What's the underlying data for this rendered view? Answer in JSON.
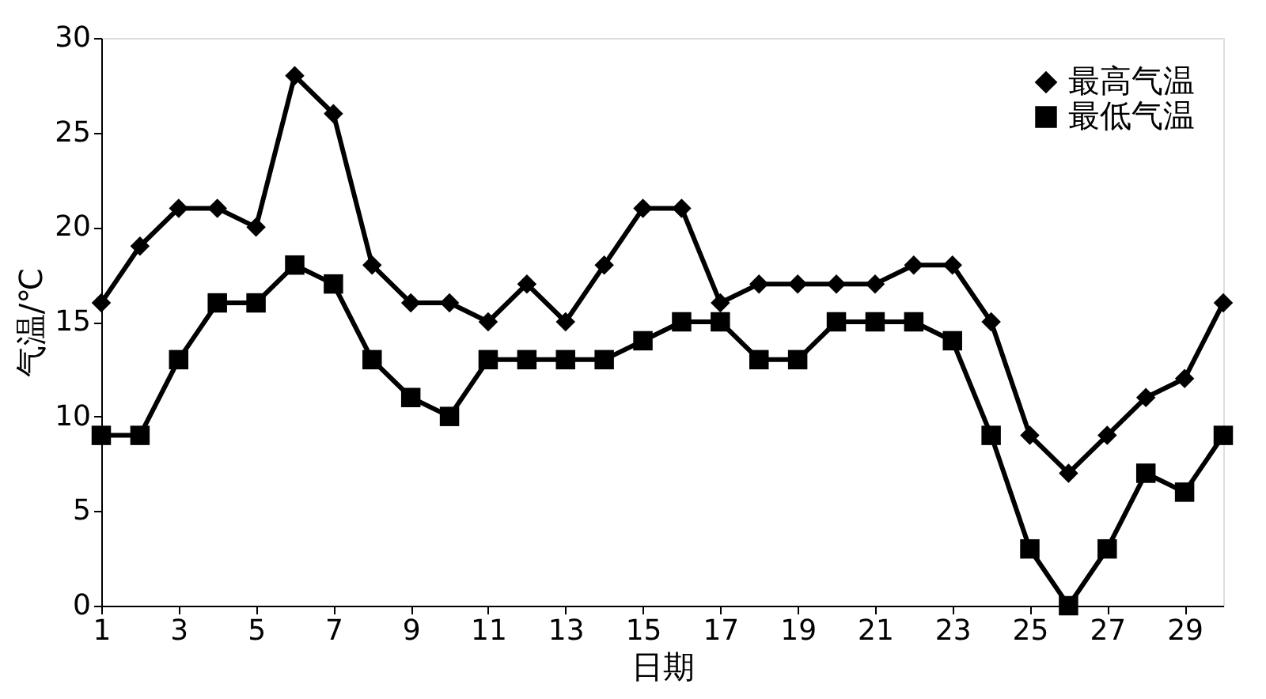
{
  "chart_data": {
    "type": "line",
    "xlabel": "日期",
    "ylabel": "气温/℃",
    "x": [
      1,
      2,
      3,
      4,
      5,
      6,
      7,
      8,
      9,
      10,
      11,
      12,
      13,
      14,
      15,
      16,
      17,
      18,
      19,
      20,
      21,
      22,
      23,
      24,
      25,
      26,
      27,
      28,
      29,
      30
    ],
    "series": [
      {
        "name": "最高气温",
        "color": "#000000",
        "marker": "diamond",
        "values": [
          16,
          19,
          21,
          21,
          20,
          28,
          26,
          18,
          16,
          16,
          15,
          17,
          15,
          18,
          21,
          21,
          16,
          17,
          17,
          17,
          17,
          18,
          18,
          15,
          9,
          7,
          9,
          11,
          12,
          16
        ]
      },
      {
        "name": "最低气温",
        "color": "#000000",
        "marker": "square",
        "values": [
          9,
          9,
          13,
          16,
          16,
          18,
          17,
          13,
          11,
          10,
          13,
          13,
          13,
          13,
          14,
          15,
          15,
          13,
          13,
          15,
          15,
          15,
          14,
          9,
          3,
          0,
          3,
          7,
          6,
          9
        ]
      }
    ],
    "xlim": [
      1,
      30
    ],
    "xticks": [
      1,
      3,
      5,
      7,
      9,
      11,
      13,
      15,
      17,
      19,
      21,
      23,
      25,
      27,
      29
    ],
    "ylim": [
      0,
      30
    ],
    "yticks": [
      0,
      5,
      10,
      15,
      20,
      25,
      30
    ],
    "grid": false,
    "legend": "top right",
    "line_style": "solid"
  }
}
